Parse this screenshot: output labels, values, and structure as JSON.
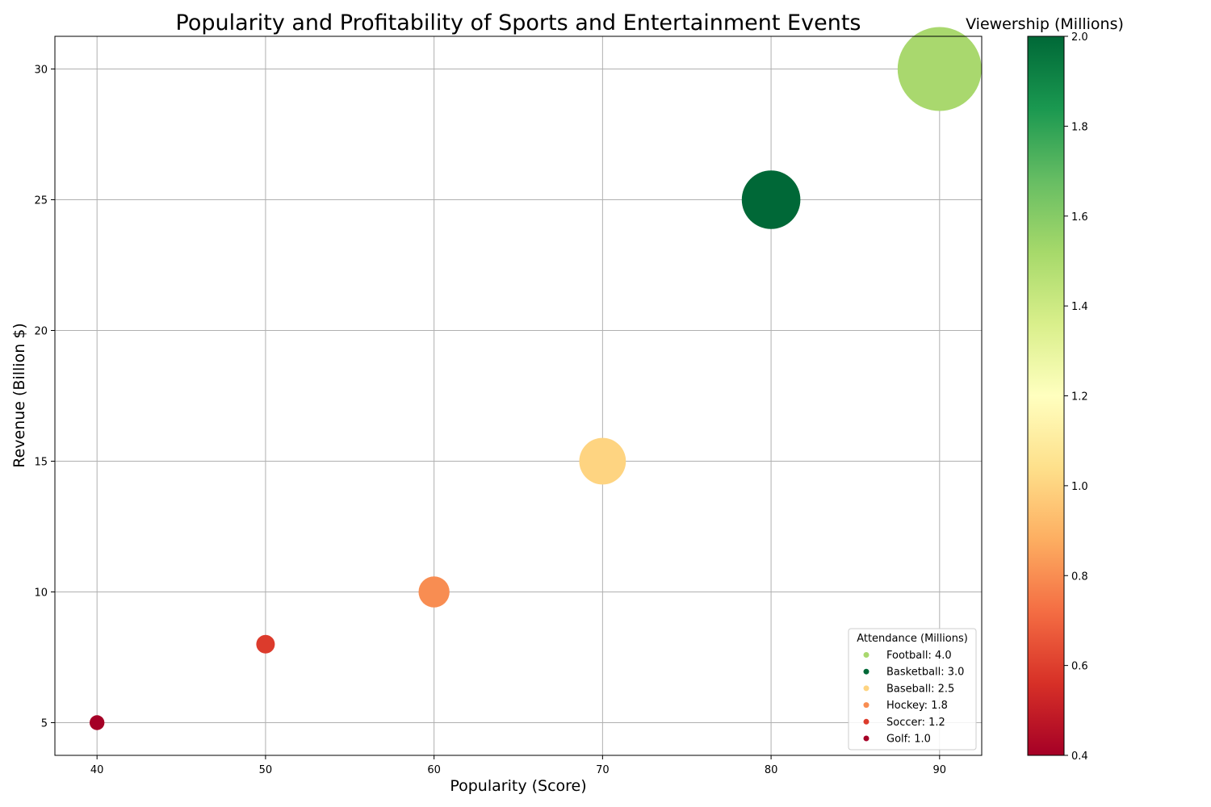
{
  "chart_data": {
    "type": "scatter",
    "title": "Popularity and Profitability of Sports and Entertainment Events",
    "xlabel": "Popularity (Score)",
    "ylabel": "Revenue (Billion $)",
    "xlim": [
      37.5,
      92.5
    ],
    "ylim": [
      3.75,
      31.25
    ],
    "xticks": [
      40,
      50,
      60,
      70,
      80,
      90
    ],
    "yticks": [
      5,
      10,
      15,
      20,
      25,
      30
    ],
    "grid": true,
    "points": [
      {
        "label": "Football",
        "x": 90,
        "y": 30,
        "attendance": 4.0,
        "viewership": 1.5,
        "color": "#a9d86e"
      },
      {
        "label": "Basketball",
        "x": 80,
        "y": 25,
        "attendance": 3.0,
        "viewership": 2.0,
        "color": "#006837"
      },
      {
        "label": "Baseball",
        "x": 70,
        "y": 15,
        "attendance": 2.5,
        "viewership": 1.0,
        "color": "#fed481"
      },
      {
        "label": "Hockey",
        "x": 60,
        "y": 10,
        "attendance": 1.8,
        "viewership": 0.8,
        "color": "#f88d52"
      },
      {
        "label": "Soccer",
        "x": 50,
        "y": 8,
        "attendance": 1.2,
        "viewership": 0.6,
        "color": "#dc3b2c"
      },
      {
        "label": "Golf",
        "x": 40,
        "y": 5,
        "attendance": 1.0,
        "viewership": 0.4,
        "color": "#a50026"
      }
    ],
    "size_encoding": "Attendance (Millions)",
    "legend": {
      "title": "Attendance (Millions)",
      "placement": "lower-right",
      "entries": [
        "Football: 4.0",
        "Basketball: 3.0",
        "Baseball: 2.5",
        "Hockey: 1.8",
        "Soccer: 1.2",
        "Golf: 1.0"
      ]
    },
    "colorbar": {
      "label": "Viewership (Millions)",
      "colormap": "RdYlGn",
      "range": [
        0.4,
        2.0
      ],
      "ticks": [
        "0.4",
        "0.6",
        "0.8",
        "1.0",
        "1.2",
        "1.4",
        "1.6",
        "1.8",
        "2.0"
      ]
    }
  }
}
